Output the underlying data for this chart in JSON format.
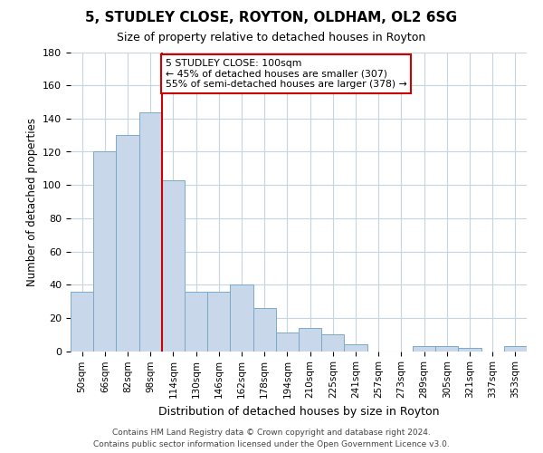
{
  "title": "5, STUDLEY CLOSE, ROYTON, OLDHAM, OL2 6SG",
  "subtitle": "Size of property relative to detached houses in Royton",
  "xlabel": "Distribution of detached houses by size in Royton",
  "ylabel": "Number of detached properties",
  "bin_labels": [
    "50sqm",
    "66sqm",
    "82sqm",
    "98sqm",
    "114sqm",
    "130sqm",
    "146sqm",
    "162sqm",
    "178sqm",
    "194sqm",
    "210sqm",
    "225sqm",
    "241sqm",
    "257sqm",
    "273sqm",
    "289sqm",
    "305sqm",
    "321sqm",
    "337sqm",
    "353sqm"
  ],
  "bar_heights": [
    36,
    120,
    130,
    144,
    103,
    36,
    36,
    40,
    26,
    11,
    14,
    10,
    4,
    0,
    0,
    3,
    3,
    2,
    0,
    3
  ],
  "bar_color": "#c8d8ea",
  "bar_edge_color": "#7aaac8",
  "vline_color": "#cc0000",
  "annotation_line1": "5 STUDLEY CLOSE: 100sqm",
  "annotation_line2": "← 45% of detached houses are smaller (307)",
  "annotation_line3": "55% of semi-detached houses are larger (378) →",
  "annotation_box_color": "#ffffff",
  "annotation_box_edge_color": "#cc0000",
  "ylim": [
    0,
    180
  ],
  "yticks": [
    0,
    20,
    40,
    60,
    80,
    100,
    120,
    140,
    160,
    180
  ],
  "footer_text": "Contains HM Land Registry data © Crown copyright and database right 2024.\nContains public sector information licensed under the Open Government Licence v3.0.",
  "background_color": "#ffffff",
  "grid_color": "#c8d4dc"
}
